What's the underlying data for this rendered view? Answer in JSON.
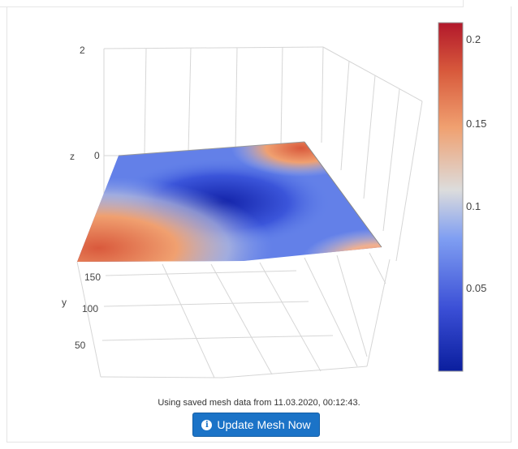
{
  "plot": {
    "z_axis": {
      "label": "z",
      "ticks": [
        "2",
        "0"
      ]
    },
    "y_axis": {
      "label": "y",
      "ticks": [
        "150",
        "100",
        "50"
      ]
    },
    "colorbar": {
      "ticks": [
        "0.2",
        "0.15",
        "0.1",
        "0.05"
      ],
      "colors": {
        "high": "#b2182b",
        "mid": "#dcdcdc",
        "low": "#0a1e9e"
      }
    }
  },
  "status": {
    "text": "Using saved mesh data from 11.03.2020, 00:12:43."
  },
  "actions": {
    "update_label": "Update Mesh Now",
    "update_icon": "info-circle-icon",
    "button_color": "#1b73c7"
  }
}
